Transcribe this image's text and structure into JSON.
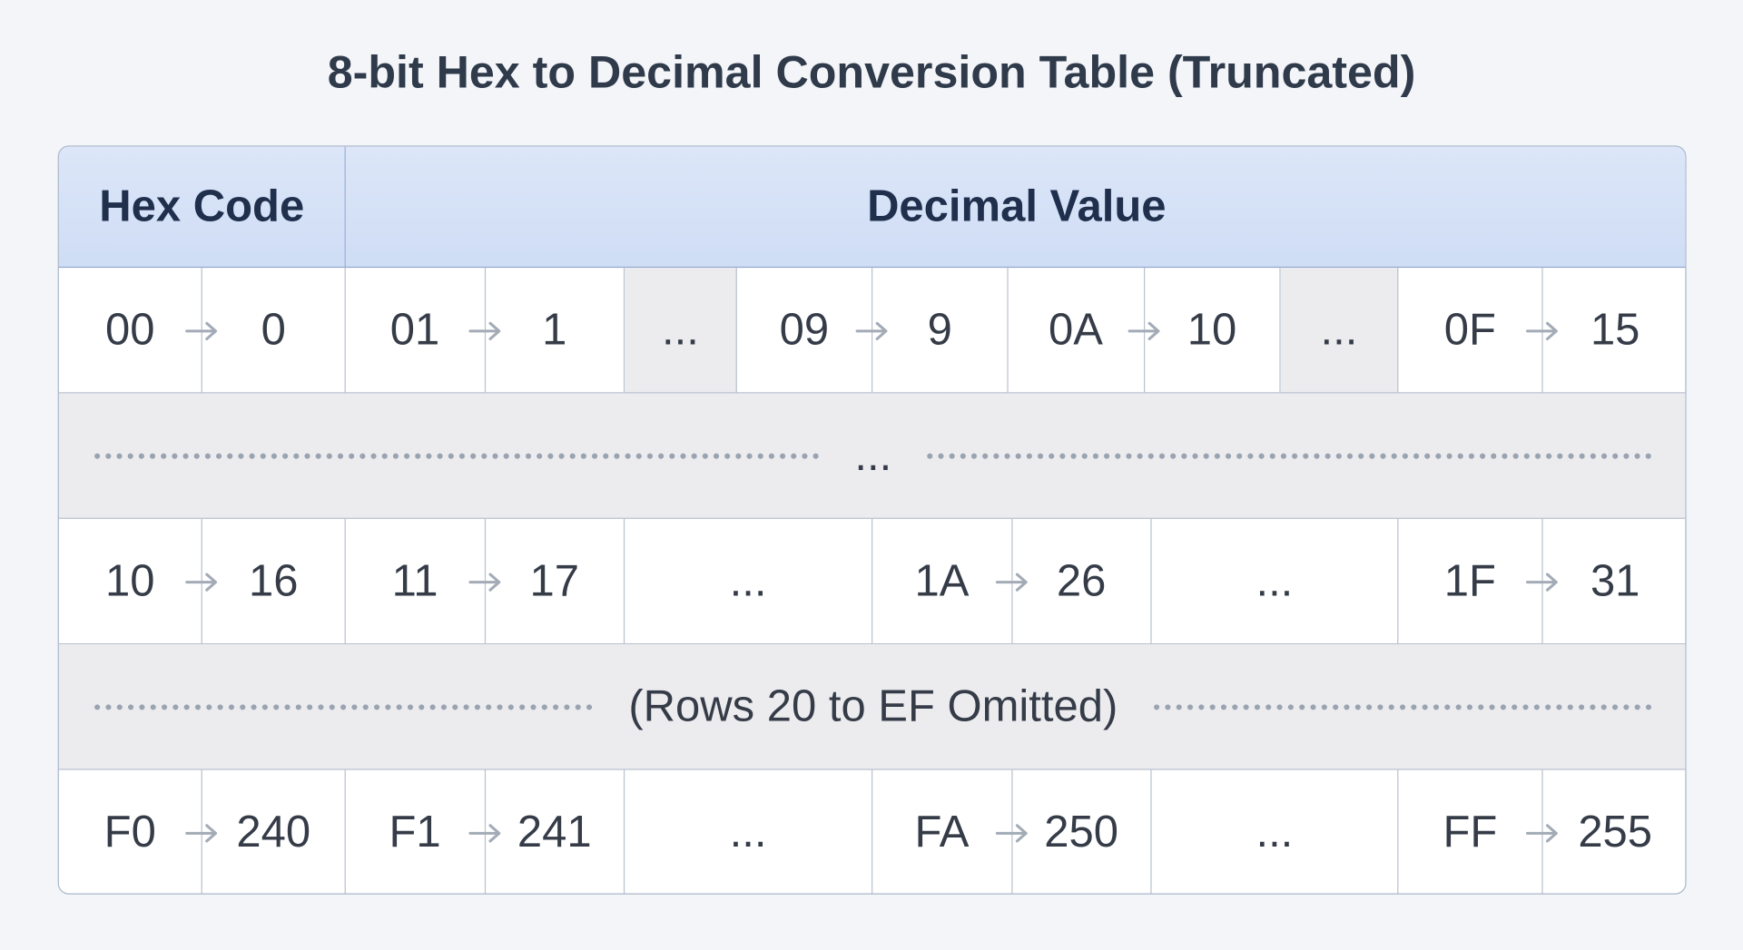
{
  "title": "8-bit Hex to Decimal Conversion Table (Truncated)",
  "table": {
    "header": [
      "Hex Code",
      "Decimal Value"
    ],
    "rows": [
      {
        "cells": [
          {
            "hex": "00",
            "dec": 0
          },
          {
            "hex": "01",
            "dec": 1
          },
          {
            "gap": "..."
          },
          {
            "hex": "09",
            "dec": 9
          },
          {
            "hex": "0A",
            "dec": 10
          },
          {
            "gap": "..."
          },
          {
            "hex": "0F",
            "dec": 15
          }
        ]
      },
      {
        "note": "..."
      },
      {
        "cells": [
          {
            "hex": "10",
            "dec": 16
          },
          {
            "hex": "11",
            "dec": 17
          },
          {
            "gap": "..."
          },
          {
            "hex": "1A",
            "dec": 26
          },
          {
            "gap": "..."
          },
          {
            "hex": "1F",
            "dec": 31
          }
        ]
      },
      {
        "note": "(Rows 20 to EF Omitted)"
      },
      {
        "cells": [
          {
            "hex": "F0",
            "dec": 240
          },
          {
            "hex": "F1",
            "dec": 241
          },
          {
            "gap": "..."
          },
          {
            "hex": "FA",
            "dec": 250
          },
          {
            "gap": "..."
          },
          {
            "hex": "FF",
            "dec": 255
          }
        ]
      }
    ]
  }
}
